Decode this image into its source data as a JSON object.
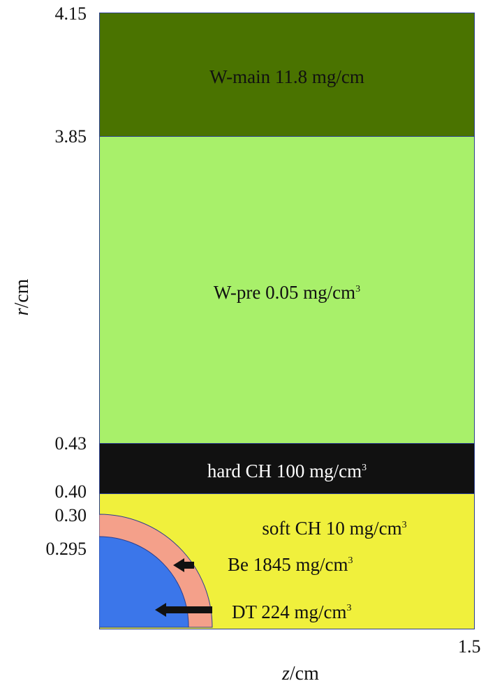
{
  "axes": {
    "x_label_var": "z",
    "x_label_unit": "/cm",
    "y_label_var": "r",
    "y_label_unit": "/cm",
    "x_ticks": [
      "1.5"
    ],
    "y_ticks": [
      "4.15",
      "3.85",
      "0.43",
      "0.40",
      "0.30",
      "0.295"
    ]
  },
  "layers": [
    {
      "id": "w-main",
      "text": "W-main 11.8 mg/cm",
      "sup": "",
      "color": "#4a7300",
      "text_color": "#111111"
    },
    {
      "id": "w-pre",
      "text": "W-pre 0.05 mg/cm",
      "sup": "3",
      "color": "#a8f06a",
      "text_color": "#111111"
    },
    {
      "id": "hard-ch",
      "text": "hard CH 100 mg/cm",
      "sup": "3",
      "color": "#111111",
      "text_color": "#ffffff"
    },
    {
      "id": "soft-ch",
      "text": "soft CH 10 mg/cm",
      "sup": "3",
      "color": "#f0f03c",
      "text_color": "#111111"
    }
  ],
  "inner": {
    "be": {
      "text": "Be 1845 mg/cm",
      "sup": "3",
      "color": "#f4a08a"
    },
    "dt": {
      "text": "DT 224 mg/cm",
      "sup": "3",
      "color": "#3b76ea"
    }
  },
  "colors": {
    "border": "#2b3f8f",
    "arrow": "#111111"
  }
}
